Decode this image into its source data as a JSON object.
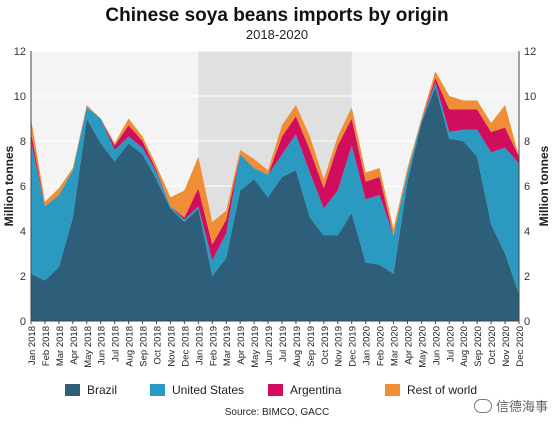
{
  "watermark": "信德海事",
  "chart_data": {
    "type": "area",
    "stacked": true,
    "title": "Chinese soya beans imports by origin",
    "subtitle": "2018-2020",
    "ylabel_left": "Million tonnes",
    "ylabel_right": "Million tonnes",
    "ylim": [
      0,
      12
    ],
    "yticks": [
      0,
      2,
      4,
      6,
      8,
      10,
      12
    ],
    "source": "Source: BIMCO, GACC",
    "shaded_region": [
      "Jan 2019",
      "Dec 2019"
    ],
    "categories": [
      "Jan 2018",
      "Feb 2018",
      "Mar 2018",
      "Apr 2018",
      "May 2018",
      "Jun 2018",
      "Jul 2018",
      "Aug 2018",
      "Sep 2018",
      "Oct 2018",
      "Nov 2018",
      "Dec 2018",
      "Jan 2019",
      "Feb 2019",
      "Mar 2019",
      "Apr 2019",
      "May 2019",
      "Jun 2019",
      "Jul 2019",
      "Aug 2019",
      "Sep 2019",
      "Oct 2019",
      "Nov 2019",
      "Dec 2019",
      "Jan 2020",
      "Feb 2020",
      "Mar 2020",
      "Apr 2020",
      "May 2020",
      "Jun 2020",
      "Jul 2020",
      "Aug 2020",
      "Sep 2020",
      "Oct 2020",
      "Nov 2020",
      "Dec 2020"
    ],
    "series": [
      {
        "name": "Brazil",
        "color": "#2e5f7a",
        "values": [
          2.1,
          1.8,
          2.4,
          4.6,
          9.0,
          7.9,
          7.1,
          7.9,
          7.4,
          6.3,
          5.0,
          4.4,
          5.0,
          2.0,
          2.8,
          5.8,
          6.3,
          5.5,
          6.4,
          6.7,
          4.6,
          3.8,
          3.8,
          4.8,
          2.6,
          2.5,
          2.1,
          6.2,
          8.8,
          10.4,
          8.1,
          8.0,
          7.3,
          4.3,
          3.0,
          1.2
        ]
      },
      {
        "name": "United States",
        "color": "#2a9ac0",
        "values": [
          5.9,
          3.3,
          3.2,
          2.1,
          0.5,
          1.1,
          0.5,
          0.3,
          0.3,
          0.3,
          0.1,
          0.1,
          0.1,
          0.7,
          1.1,
          1.6,
          0.5,
          1.0,
          1.0,
          1.6,
          2.0,
          1.2,
          2.0,
          3.0,
          2.8,
          3.1,
          1.7,
          0.4,
          0.1,
          0.2,
          0.3,
          0.5,
          1.2,
          3.2,
          4.7,
          5.8
        ]
      },
      {
        "name": "Argentina",
        "color": "#d10e5d",
        "values": [
          0.4,
          0.0,
          0.0,
          0.0,
          0.0,
          0.0,
          0.2,
          0.5,
          0.3,
          0.1,
          0.0,
          0.1,
          0.8,
          0.7,
          0.6,
          0.0,
          0.0,
          0.0,
          0.8,
          0.8,
          1.0,
          0.9,
          2.0,
          1.2,
          0.8,
          0.8,
          0.0,
          0.0,
          0.0,
          0.2,
          1.0,
          0.9,
          0.9,
          0.9,
          0.9,
          0.3
        ]
      },
      {
        "name": "Rest of world",
        "color": "#f08e35",
        "values": [
          0.6,
          0.2,
          0.3,
          0.1,
          0.1,
          0.0,
          0.1,
          0.3,
          0.2,
          0.2,
          0.4,
          1.2,
          1.4,
          1.0,
          0.4,
          0.2,
          0.4,
          0.2,
          0.5,
          0.5,
          0.6,
          0.4,
          0.4,
          0.5,
          0.4,
          0.4,
          0.3,
          0.2,
          0.1,
          0.3,
          0.6,
          0.4,
          0.4,
          0.4,
          1.0,
          0.0
        ]
      }
    ]
  }
}
